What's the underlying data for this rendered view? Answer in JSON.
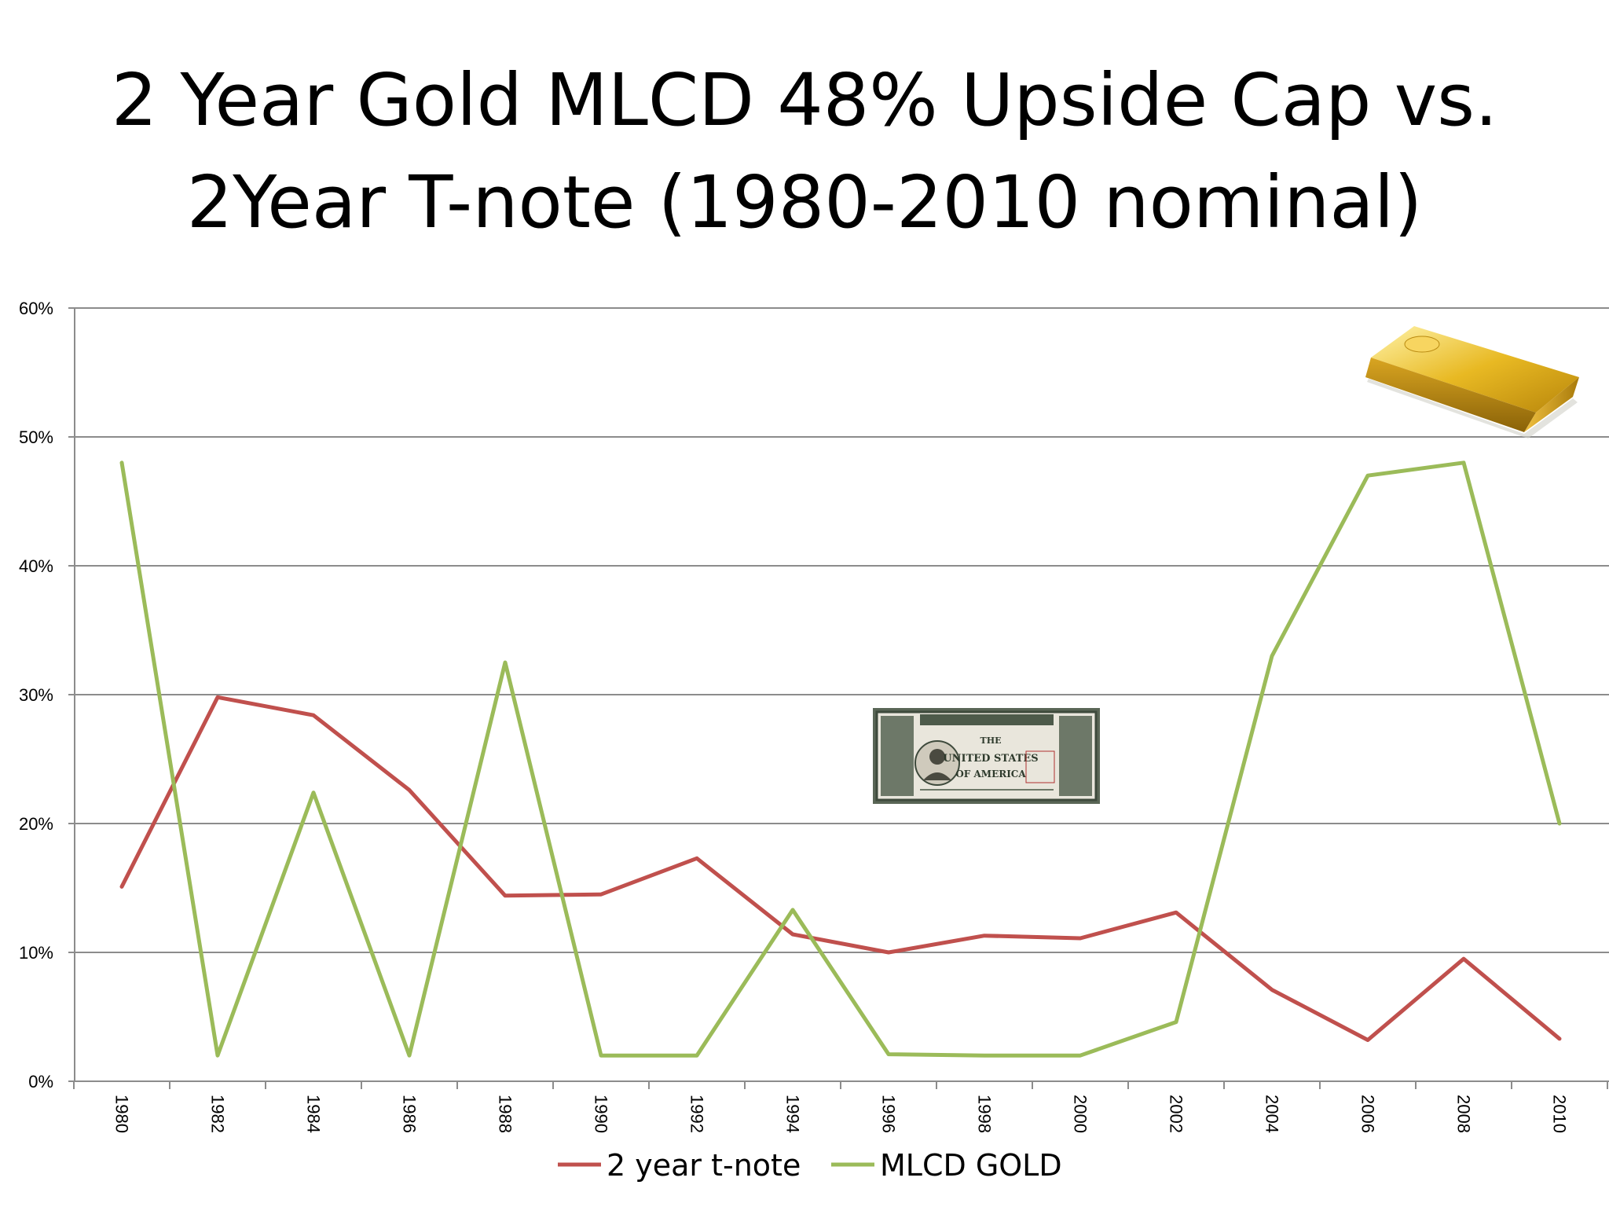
{
  "title": {
    "line1": "2 Year Gold MLCD 48% Upside Cap vs.",
    "line2": "2Year T-note (1980-2010 nominal)"
  },
  "chart_data": {
    "type": "line",
    "x": [
      1980,
      1982,
      1984,
      1986,
      1988,
      1990,
      1992,
      1994,
      1996,
      1998,
      2000,
      2002,
      2004,
      2006,
      2008,
      2010
    ],
    "x_tick_labels": [
      "1980",
      "1982",
      "1984",
      "1986",
      "1988",
      "1990",
      "1992",
      "1994",
      "1996",
      "1998",
      "2000",
      "2002",
      "2004",
      "2006",
      "2008",
      "2010"
    ],
    "y_tick_labels": [
      "0%",
      "10%",
      "20%",
      "30%",
      "40%",
      "50%",
      "60%"
    ],
    "ylim": [
      0,
      60
    ],
    "y_unit": "%",
    "grid": "horizontal",
    "legend_position": "bottom",
    "series": [
      {
        "name": "2 year t-note",
        "color": "#c0504d",
        "values": [
          15.1,
          29.8,
          28.4,
          22.6,
          14.4,
          14.5,
          17.3,
          11.4,
          10.0,
          11.3,
          11.1,
          13.1,
          7.1,
          3.2,
          9.5,
          3.3
        ]
      },
      {
        "name": "MLCD GOLD",
        "color": "#9bbb59",
        "values": [
          48.0,
          2.0,
          22.4,
          2.0,
          32.5,
          2.0,
          2.0,
          13.3,
          2.1,
          2.0,
          2.0,
          4.6,
          33.0,
          47.0,
          48.0,
          20.0
        ]
      }
    ]
  },
  "images": {
    "gold_bar": "gold-bar-image",
    "bond": "us-bond-certificate-image",
    "bond_text": "THE UNITED STATES OF AMERICA"
  },
  "colors": {
    "grid": "#8c8c8c",
    "axis": "#8c8c8c",
    "gold": "#d4a017",
    "bond_green": "#4d5a4a"
  }
}
